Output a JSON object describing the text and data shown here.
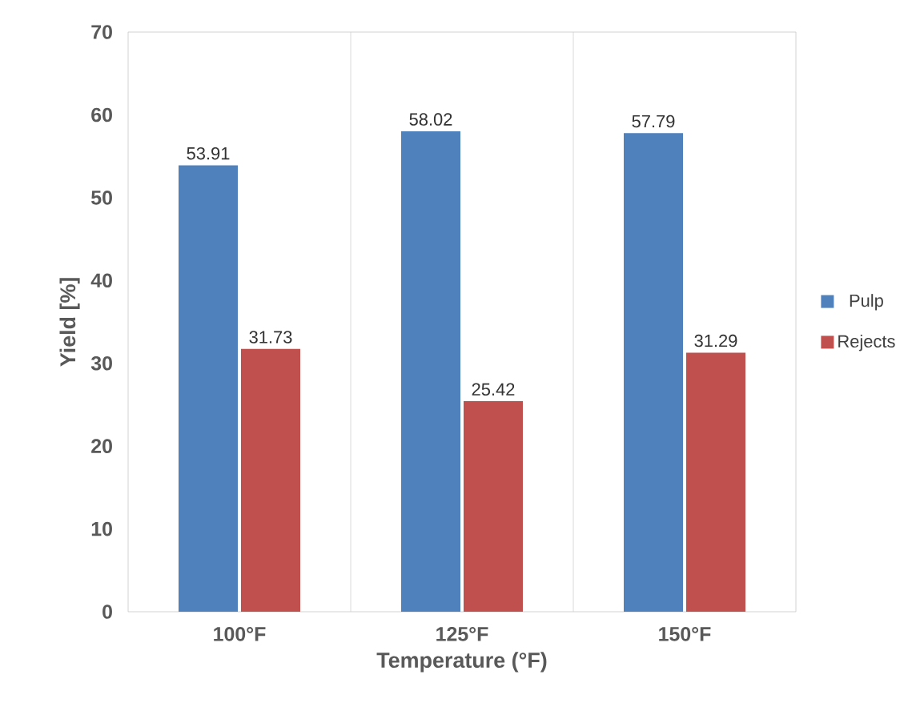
{
  "chart_data": {
    "type": "bar",
    "xlabel": "Temperature (°F)",
    "ylabel": "Yield [%]",
    "categories": [
      "100°F",
      "125°F",
      "150°F"
    ],
    "series": [
      {
        "name": "Pulp",
        "color": "#4f81bd",
        "values": [
          53.91,
          58.02,
          57.79
        ]
      },
      {
        "name": "Rejects",
        "color": "#c0504d",
        "values": [
          31.73,
          25.42,
          31.29
        ]
      }
    ],
    "ylim": [
      0,
      70
    ],
    "yticks": [
      0,
      10,
      20,
      30,
      40,
      50,
      60,
      70
    ],
    "grid": "x",
    "legend": "right",
    "data_labels": true
  }
}
